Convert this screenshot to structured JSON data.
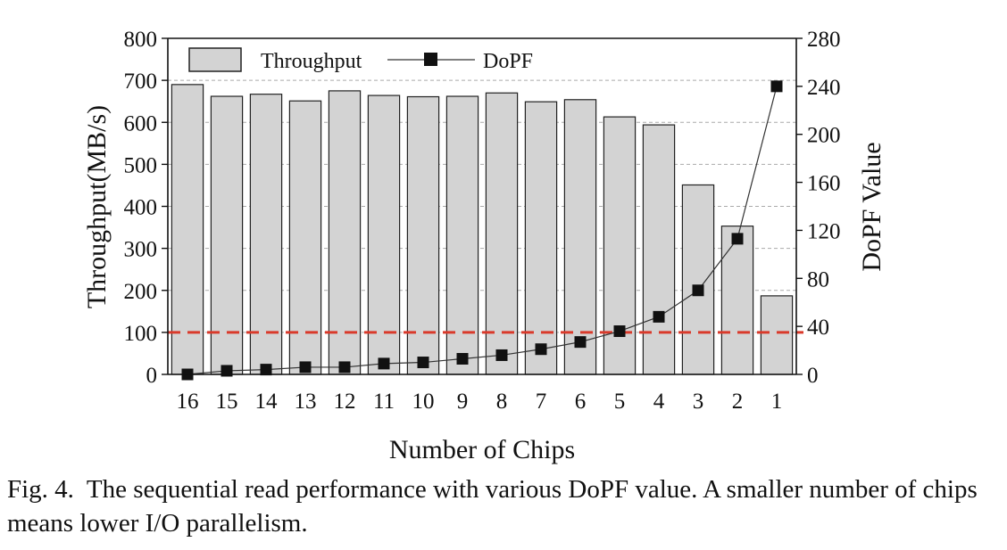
{
  "chart_data": {
    "type": "bar",
    "categories": [
      "16",
      "15",
      "14",
      "13",
      "12",
      "11",
      "10",
      "9",
      "8",
      "7",
      "6",
      "5",
      "4",
      "3",
      "2",
      "1"
    ],
    "series": [
      {
        "name": "Throughput",
        "type": "bar",
        "axis": "left",
        "values": [
          690,
          662,
          667,
          651,
          675,
          664,
          661,
          662,
          670,
          649,
          654,
          613,
          594,
          451,
          353,
          187
        ]
      },
      {
        "name": "DoPF",
        "type": "line",
        "axis": "right",
        "values": [
          0,
          3,
          4,
          6,
          6,
          9,
          10,
          13,
          16,
          21,
          27,
          36,
          48,
          70,
          113,
          240
        ]
      }
    ],
    "xlabel": "Number of Chips",
    "ylabel": "Throughput(MB/s)",
    "ylabel_right": "DoPF Value",
    "ylim": [
      0,
      800
    ],
    "ylim_right": [
      0,
      280
    ],
    "yticks": [
      "0",
      "100",
      "200",
      "300",
      "400",
      "500",
      "600",
      "700",
      "800"
    ],
    "yticks_right": [
      "0",
      "40",
      "80",
      "120",
      "160",
      "200",
      "240",
      "280"
    ],
    "reference_line": {
      "value": 100,
      "axis": "left",
      "color": "#d93a2b",
      "style": "dashed"
    },
    "grid": "horizontal dashed",
    "legend": "top-left",
    "colors": {
      "bar_fill": "#d3d3d3",
      "bar_stroke": "#222222",
      "line": "#333333",
      "marker": "#111111",
      "reference": "#d93a2b",
      "grid": "#aaaaaa"
    }
  },
  "caption": {
    "label": "Fig. 4.",
    "text": "The sequential read performance with various DoPF value. A smaller number of chips means lower I/O parallelism."
  }
}
